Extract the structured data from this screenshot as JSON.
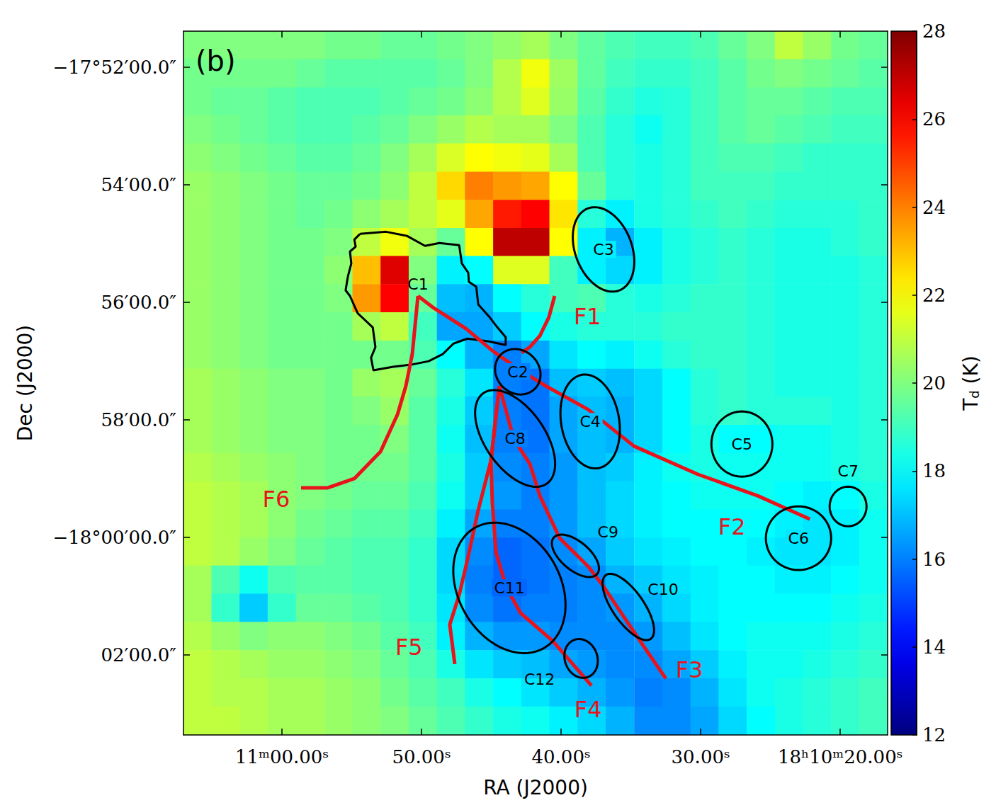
{
  "chart_data": {
    "type": "heatmap",
    "panel": "(b)",
    "xlabel": "RA (J2000)",
    "ylabel": "Dec (J2000)",
    "grid": false,
    "xlim": [
      272.7794,
      272.5692
    ],
    "xticks": [
      {
        "value": 272.75,
        "label": "11ᵐ00.00ˢ"
      },
      {
        "value": 272.70833,
        "label": "50.00ˢ"
      },
      {
        "value": 272.66667,
        "label": "40.00ˢ"
      },
      {
        "value": 272.625,
        "label": "30.00ˢ"
      },
      {
        "value": 272.58333,
        "label": "18ʰ10ᵐ20.00ˢ"
      }
    ],
    "ylim": [
      -18.056,
      -17.8564
    ],
    "yticks": [
      {
        "value": -17.86667,
        "label": "−17°52′00.0″"
      },
      {
        "value": -17.9,
        "label": "54′00.0″"
      },
      {
        "value": -17.93333,
        "label": "56′00.0″"
      },
      {
        "value": -17.96667,
        "label": "58′00.0″"
      },
      {
        "value": -18,
        "label": "−18°00′00.0″"
      },
      {
        "value": -18.03333,
        "label": "02′00.0″"
      }
    ],
    "colorbar": {
      "label": "T",
      "label_subscript": "d",
      "label_unit": "(K)",
      "lim": [
        12,
        28
      ],
      "ticks": [
        12,
        14,
        16,
        18,
        20,
        22,
        24,
        26,
        28
      ]
    },
    "cells": {
      "ra": [
        272.7752,
        272.7668,
        272.7584,
        272.75,
        272.7416,
        272.7331,
        272.7247,
        272.7163,
        272.7079,
        272.6995,
        272.6911,
        272.6827,
        272.6743,
        272.6659,
        272.6575,
        272.6491,
        272.6406,
        272.6322,
        272.6238,
        272.6154,
        272.607,
        272.5986,
        272.5902,
        272.5818,
        272.5734
      ],
      "dec": [
        -17.8604,
        -17.8684,
        -17.8764,
        -17.8843,
        -17.8923,
        -17.9003,
        -17.9083,
        -17.9163,
        -17.9242,
        -17.9322,
        -17.9402,
        -17.9482,
        -17.9562,
        -17.9641,
        -17.9721,
        -17.9801,
        -17.9881,
        -17.9961,
        -18.0041,
        -18.012,
        -18.02,
        -18.028,
        -18.036,
        -18.044,
        -18.052
      ],
      "values": [
        [
          20,
          20,
          20,
          20,
          20,
          19.8,
          19.8,
          19.6,
          19.6,
          19.8,
          20,
          20.3,
          20.6,
          20,
          19.5,
          19.2,
          19,
          19,
          19.2,
          19.6,
          20,
          21,
          20.4,
          19.8,
          19.6
        ],
        [
          19.8,
          19.8,
          19.8,
          19.8,
          19.6,
          19.4,
          19.4,
          19.4,
          19.4,
          19.6,
          20,
          20.8,
          21.8,
          20.5,
          19.5,
          19,
          18.8,
          18.8,
          19,
          19.4,
          19.8,
          20,
          19.8,
          19.6,
          19.4
        ],
        [
          19.8,
          19.6,
          19.6,
          19.4,
          19.2,
          19.2,
          19.2,
          19.4,
          19.6,
          19.8,
          20.2,
          20.8,
          21.5,
          20.4,
          19.4,
          18.8,
          18.5,
          18.6,
          19,
          19.4,
          19.6,
          19.6,
          19.4,
          19.2,
          19.2
        ],
        [
          20,
          19.8,
          19.6,
          19.4,
          19.2,
          19.2,
          19.4,
          19.6,
          20,
          20.4,
          20.8,
          20.6,
          20.6,
          20,
          19.2,
          18.6,
          18.2,
          18.6,
          19,
          19.4,
          19.6,
          19.4,
          19.2,
          19,
          19
        ],
        [
          20.2,
          20,
          19.8,
          19.6,
          19.4,
          19.4,
          19.6,
          20,
          20.6,
          21.4,
          22,
          21.8,
          21.6,
          20.6,
          19.2,
          18.6,
          18.4,
          18.6,
          19,
          19.2,
          19.2,
          19,
          18.8,
          18.8,
          18.8
        ],
        [
          20.4,
          20.2,
          20,
          19.8,
          19.6,
          19.6,
          19.8,
          20.2,
          21,
          22.6,
          24,
          23.6,
          23.4,
          22,
          19.6,
          18.6,
          18.4,
          18.6,
          19,
          19,
          19,
          18.8,
          18.8,
          18.8,
          18.8
        ],
        [
          20.4,
          20.2,
          20,
          19.8,
          19.6,
          19.8,
          20.2,
          20.6,
          21,
          21.6,
          23.4,
          25.6,
          26,
          22.4,
          18.6,
          17.8,
          18.4,
          18.6,
          18.8,
          19,
          18.8,
          18.6,
          18.6,
          18.6,
          18.8
        ],
        [
          20.4,
          20.2,
          20,
          19.8,
          19.8,
          20,
          21,
          21.8,
          20.6,
          19.6,
          22,
          27,
          27,
          22,
          17.8,
          16.8,
          17.8,
          18.4,
          18.6,
          18.8,
          18.6,
          18.4,
          18.4,
          18.6,
          18.8
        ],
        [
          20.4,
          20.2,
          20,
          19.8,
          19.8,
          20.2,
          23,
          26.5,
          20,
          17.8,
          18,
          21.5,
          21.5,
          19,
          17.8,
          17.4,
          17.8,
          18.4,
          18.6,
          18.8,
          18.6,
          18.4,
          18.4,
          18.4,
          18.6
        ],
        [
          20.4,
          20.2,
          20,
          19.8,
          19.8,
          20,
          23.6,
          26,
          19.6,
          17,
          16.8,
          18,
          18.6,
          19,
          19.2,
          18.6,
          18.4,
          18.6,
          18.8,
          18.8,
          18.6,
          18.4,
          18.4,
          18.4,
          18.6
        ],
        [
          20.4,
          20.2,
          20,
          19.8,
          19.8,
          19.8,
          20.6,
          21,
          19,
          16.6,
          16.6,
          17.2,
          18,
          18.4,
          18.6,
          18.6,
          18.6,
          18.8,
          18.8,
          18.8,
          18.6,
          18.4,
          18.4,
          18.4,
          18.6
        ],
        [
          20.4,
          20.2,
          20,
          19.8,
          19.8,
          19.8,
          19.8,
          19.8,
          19.2,
          18,
          16.8,
          16,
          16.6,
          17.6,
          18,
          17.8,
          18.2,
          18.6,
          18.8,
          18.8,
          18.6,
          18.4,
          18.4,
          18.4,
          18.6
        ],
        [
          20.6,
          20.4,
          20.2,
          20,
          20,
          19.8,
          20.4,
          20.6,
          19.6,
          18.6,
          17.6,
          16,
          15.8,
          17,
          17.2,
          17,
          17.4,
          18,
          18.6,
          18.8,
          18.6,
          18.4,
          18.4,
          18.4,
          18.6
        ],
        [
          20.6,
          20.4,
          20.2,
          20,
          20,
          19.8,
          20,
          20.4,
          19.4,
          18.4,
          17.2,
          16,
          15.8,
          16.6,
          17,
          16.8,
          17.4,
          18,
          18.6,
          18.8,
          18.6,
          18.6,
          18.6,
          18.4,
          18.6
        ],
        [
          20.6,
          20.4,
          20.2,
          20,
          20,
          19.8,
          19.8,
          20,
          19.4,
          18.2,
          17,
          16,
          15.8,
          16.6,
          17,
          16.8,
          17.4,
          18,
          18.4,
          18,
          18,
          18.2,
          18.2,
          18.4,
          18.6
        ],
        [
          20.8,
          20.6,
          20.4,
          20.2,
          20,
          19.8,
          19.8,
          19.8,
          19.4,
          18.4,
          17.2,
          16.2,
          16,
          16.4,
          17,
          17.2,
          17.8,
          18.2,
          18.4,
          18.2,
          18.2,
          18.2,
          18.2,
          18.4,
          18.6
        ],
        [
          21,
          20.8,
          20.6,
          20.2,
          20,
          19.8,
          19.6,
          19.6,
          19.2,
          18.2,
          17.2,
          16.4,
          16,
          16.4,
          17,
          17.4,
          17.8,
          18,
          18.2,
          18.2,
          18.2,
          18,
          17.8,
          18,
          18.4
        ],
        [
          21,
          20.8,
          20.6,
          20.2,
          19.8,
          19.6,
          19.4,
          19.4,
          19,
          17.8,
          16.6,
          16,
          16,
          16.4,
          17,
          17.4,
          17.8,
          18,
          18,
          18,
          18,
          17.8,
          17.6,
          17.8,
          18.2
        ],
        [
          21,
          20.8,
          20.4,
          20,
          19.6,
          19.4,
          19.2,
          19.2,
          18.8,
          17.4,
          16.2,
          15.6,
          15.8,
          16.2,
          16.6,
          17.2,
          17.6,
          17.8,
          18,
          18,
          17.8,
          17.6,
          17.6,
          17.8,
          18.2
        ],
        [
          20.6,
          19.2,
          18.2,
          19.2,
          19.4,
          19.4,
          19.2,
          19.2,
          18.8,
          17.4,
          16,
          15.6,
          15.8,
          16,
          16.2,
          16.8,
          17.2,
          17.6,
          17.8,
          18,
          18,
          17.8,
          17.8,
          18,
          18.2
        ],
        [
          20.6,
          18.8,
          17.2,
          18.8,
          19.6,
          19.6,
          19.4,
          19.2,
          18.8,
          17.6,
          16.2,
          15.8,
          16,
          16,
          16.2,
          16.4,
          16.8,
          17.4,
          17.8,
          18,
          18,
          18,
          18,
          18.2,
          18.4
        ],
        [
          20.8,
          20.4,
          20,
          20.2,
          20.2,
          20,
          19.8,
          19.4,
          19,
          17.8,
          16.8,
          16.4,
          16.4,
          16.2,
          16.2,
          16.2,
          16.4,
          17,
          17.6,
          18,
          18.2,
          18.2,
          18.2,
          18.4,
          18.6
        ],
        [
          21,
          20.8,
          20.6,
          20.4,
          20.4,
          20.2,
          20,
          19.6,
          19.2,
          18.4,
          17.6,
          17.2,
          17,
          16.6,
          16.4,
          16.2,
          16.2,
          16.6,
          17.2,
          17.8,
          18.2,
          18.2,
          18.4,
          18.6,
          18.8
        ],
        [
          21,
          20.8,
          20.8,
          20.6,
          20.6,
          20.4,
          20.2,
          19.8,
          19.4,
          19,
          18.4,
          18,
          17.6,
          17.2,
          16.8,
          16.4,
          16,
          16.2,
          16.8,
          17.6,
          18.2,
          18.4,
          18.6,
          18.8,
          19
        ],
        [
          21,
          21,
          20.8,
          20.6,
          20.6,
          20.4,
          20.2,
          20,
          19.6,
          19.2,
          18.8,
          18.4,
          18.2,
          17.8,
          17.4,
          16.8,
          16.2,
          16.2,
          16.6,
          17.4,
          18,
          18.4,
          18.6,
          18.8,
          19
        ]
      ]
    },
    "contour": {
      "color": "#000000",
      "ra": [
        272.7267,
        272.7189,
        272.7126,
        272.7073,
        272.703,
        272.6971,
        272.6963,
        272.6944,
        272.6942,
        272.692,
        272.6914,
        272.6882,
        272.6857,
        272.6832,
        272.6832,
        272.6882,
        272.6946,
        272.6988,
        272.702,
        272.7062,
        272.7115,
        272.7168,
        272.7227,
        272.7234,
        272.7221,
        272.7229,
        272.7274,
        272.7297,
        272.731,
        272.7303,
        272.7293,
        272.7297,
        272.728,
        272.7284
      ],
      "dec": [
        -17.9139,
        -17.9133,
        -17.9145,
        -17.9173,
        -17.9165,
        -17.9171,
        -17.9223,
        -17.9249,
        -17.9275,
        -17.9289,
        -17.9339,
        -17.9373,
        -17.9404,
        -17.9432,
        -17.9454,
        -17.9444,
        -17.9436,
        -17.945,
        -17.948,
        -17.95,
        -17.951,
        -17.9516,
        -17.9526,
        -17.949,
        -17.946,
        -17.9404,
        -17.9364,
        -17.9315,
        -17.9299,
        -17.9259,
        -17.9223,
        -17.9189,
        -17.9175,
        -17.9155
      ]
    },
    "filaments": [
      {
        "name": "F1",
        "color": "#e8141c",
        "ra": [
          272.6686,
          272.6703,
          272.673,
          272.676,
          272.6785
        ],
        "dec": [
          -17.9315,
          -17.9375,
          -17.9428,
          -17.946,
          -17.9476
        ],
        "label_ra": 272.6588,
        "label_dec": -17.9373
      },
      {
        "name": "F2",
        "color": "#e8141c",
        "ra": [
          272.7094,
          272.7047,
          272.695,
          272.6872,
          272.6798,
          272.6713,
          272.6586,
          272.6449,
          272.6258,
          272.6079,
          272.5924
        ],
        "dec": [
          -17.9315,
          -17.9349,
          -17.9408,
          -17.947,
          -17.952,
          -17.957,
          -17.9637,
          -17.9741,
          -17.9821,
          -17.9882,
          -17.9948
        ],
        "label_ra": 272.6157,
        "label_dec": -17.997
      },
      {
        "name": "F3",
        "color": "#e8141c",
        "ra": [
          272.6851,
          272.6808,
          272.676,
          272.673,
          272.6671,
          272.6586,
          272.654,
          272.6481,
          272.6417,
          272.6354
        ],
        "dec": [
          -17.957,
          -17.9721,
          -17.9791,
          -17.9882,
          -18.0002,
          -18.0082,
          -18.0139,
          -18.0223,
          -18.0313,
          -18.04
        ],
        "label_ra": 272.6284,
        "label_dec": -18.0375
      },
      {
        "name": "F4",
        "color": "#e8141c",
        "ra": [
          272.6851,
          272.6876,
          272.6872,
          272.6861,
          272.683,
          272.6787,
          272.6692,
          272.6576
        ],
        "dec": [
          -17.957,
          -17.9781,
          -17.9902,
          -18.0042,
          -18.0143,
          -18.0215,
          -18.0293,
          -18.042
        ],
        "label_ra": 272.6586,
        "label_dec": -18.0488
      },
      {
        "name": "F5",
        "color": "#e8141c",
        "ra": [
          272.6851,
          272.6876,
          272.6914,
          272.6946,
          272.6971,
          272.6999,
          272.6984
        ],
        "dec": [
          -17.957,
          -17.9781,
          -17.9922,
          -18.0062,
          -18.0163,
          -18.0247,
          -18.0359
        ],
        "label_ra": 272.7121,
        "label_dec": -18.0311
      },
      {
        "name": "F6",
        "color": "#e8141c",
        "ra": [
          272.7094,
          272.7111,
          272.713,
          272.7155,
          272.7206,
          272.7284,
          272.7363,
          272.7443
        ],
        "dec": [
          -17.9315,
          -17.948,
          -17.957,
          -17.9651,
          -17.9757,
          -17.9833,
          -17.9859,
          -17.9859
        ],
        "label_ra": 272.7517,
        "label_dec": -17.9892
      }
    ],
    "cores": {
      "color": "#000000",
      "items": [
        {
          "name": "C2",
          "ra": 272.6796,
          "dec": -17.953,
          "a": 24.6,
          "b": 21.7,
          "angle": -45,
          "label_position": "center"
        },
        {
          "name": "C3",
          "ra": 272.654,
          "dec": -17.9183,
          "a": 44.8,
          "b": 28.9,
          "angle": -69,
          "label_position": "center"
        },
        {
          "name": "C4",
          "ra": 272.658,
          "dec": -17.9671,
          "a": 48.4,
          "b": 29.6,
          "angle": -80,
          "label_position": "center"
        },
        {
          "name": "C5",
          "ra": 272.6127,
          "dec": -17.9735,
          "a": 33.3,
          "b": 31.1,
          "angle": 90,
          "label_position": "center"
        },
        {
          "name": "C6",
          "ra": 272.5958,
          "dec": -18.0002,
          "a": 33.3,
          "b": 32.5,
          "angle": 0,
          "label_position": "center"
        },
        {
          "name": "C7",
          "ra": 272.581,
          "dec": -17.9912,
          "a": 20.2,
          "b": 18.8,
          "angle": 90,
          "label_position": "top"
        },
        {
          "name": "C8",
          "ra": 272.6804,
          "dec": -17.9719,
          "a": 56.4,
          "b": 30.4,
          "angle": -55,
          "label_position": "center"
        },
        {
          "name": "C9",
          "ra": 272.6624,
          "dec": -18.0052,
          "a": 28.9,
          "b": 14.5,
          "angle": -40,
          "label_position": "top-right"
        },
        {
          "name": "C10",
          "ra": 272.6466,
          "dec": -18.0197,
          "a": 39.8,
          "b": 15.9,
          "angle": -55,
          "label_position": "right"
        },
        {
          "name": "C11",
          "ra": 272.6821,
          "dec": -18.0143,
          "a": 70.8,
          "b": 52.0,
          "angle": -60,
          "label_position": "center"
        },
        {
          "name": "C12",
          "ra": 272.6607,
          "dec": -18.0343,
          "a": 20.2,
          "b": 16.6,
          "angle": -70,
          "label_position": "bottom-left"
        }
      ]
    },
    "annotations": [
      {
        "text": "C1",
        "ra": 272.7094,
        "dec": -17.9315
      }
    ]
  }
}
